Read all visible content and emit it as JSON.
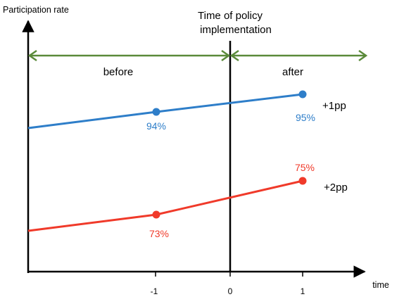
{
  "chart_data": {
    "type": "line",
    "ylabel": "Participation rate",
    "xlabel": "time",
    "x_ticks": [
      "-1",
      "0",
      "1"
    ],
    "policy_label_lines": [
      "Time of policy",
      "implementation"
    ],
    "periods": {
      "before": "before",
      "after": "after"
    },
    "series": [
      {
        "color": "#2e7ec9",
        "points": [
          {
            "x": -1,
            "label": "94%"
          },
          {
            "x": 1,
            "label": "95%"
          }
        ],
        "change": "+1pp"
      },
      {
        "color": "#f03a2a",
        "points": [
          {
            "x": -1,
            "label": "73%"
          },
          {
            "x": 1,
            "label": "75%"
          }
        ],
        "change": "+2pp"
      }
    ],
    "colors": {
      "axis": "#000000",
      "arrows": "#5a8a3a"
    }
  }
}
